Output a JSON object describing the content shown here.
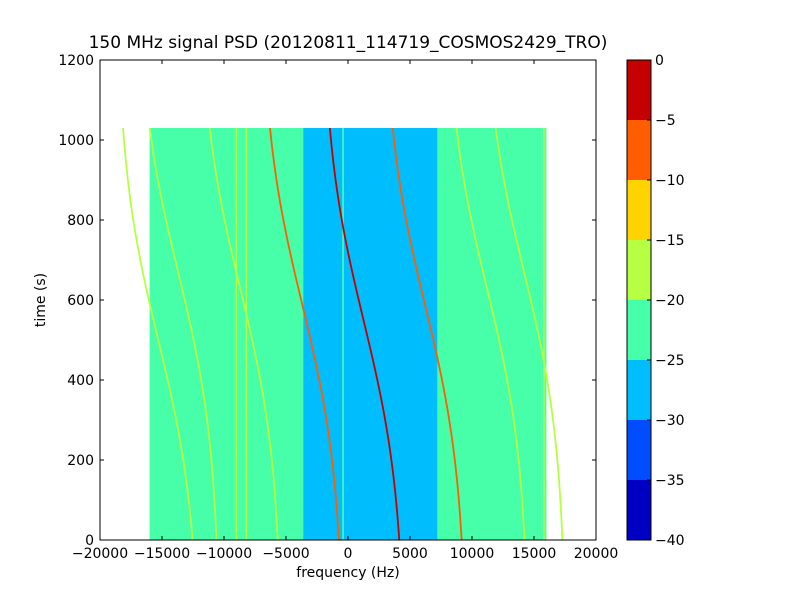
{
  "chart_data": {
    "type": "heatmap",
    "title": "150 MHz signal PSD (20120811_114719_COSMOS2429_TRO)",
    "xlabel": "frequency (Hz)",
    "ylabel": "time (s)",
    "xlim": [
      -20000,
      20000
    ],
    "ylim": [
      0,
      1200
    ],
    "xticks": [
      -20000,
      -15000,
      -10000,
      -5000,
      0,
      5000,
      10000,
      15000,
      20000
    ],
    "xtick_labels": [
      "−20000",
      "−15000",
      "−10000",
      "−5000",
      "0",
      "5000",
      "10000",
      "15000",
      "20000"
    ],
    "yticks": [
      0,
      200,
      400,
      600,
      800,
      1000,
      1200
    ],
    "ytick_labels": [
      "0",
      "200",
      "400",
      "600",
      "800",
      "1000",
      "1200"
    ],
    "data_extent": {
      "x": [
        -16000,
        16000
      ],
      "y": [
        0,
        1030
      ]
    },
    "background_level": -22.5,
    "noise_band": {
      "x": [
        -3600,
        7200
      ],
      "level": -27.5
    },
    "vertical_lines": [
      {
        "x": -9000,
        "y": [
          0,
          1030
        ],
        "level": -17.5
      },
      {
        "x": -8200,
        "y": [
          0,
          1030
        ],
        "level": -17.5
      },
      {
        "x": -400,
        "y": [
          0,
          1030
        ],
        "level": -22.5
      },
      {
        "x": 15800,
        "y": [
          0,
          1030
        ],
        "level": -17.5
      }
    ],
    "traces": [
      {
        "center_x": 1250,
        "center_y": 550,
        "spread_x": 3400,
        "time_span": 440,
        "level": -2.5,
        "y_range": [
          0,
          1030
        ]
      },
      {
        "center_x": -3700,
        "center_y": 590,
        "spread_x": 3400,
        "time_span": 440,
        "level": -7.5,
        "y_range": [
          0,
          1030
        ]
      },
      {
        "center_x": 6200,
        "center_y": 590,
        "spread_x": 3400,
        "time_span": 440,
        "level": -7.5,
        "y_range": [
          0,
          1030
        ]
      },
      {
        "center_x": -8700,
        "center_y": 630,
        "spread_x": 3400,
        "time_span": 440,
        "level": -17.5,
        "y_range": [
          0,
          1030
        ]
      },
      {
        "center_x": 11200,
        "center_y": 630,
        "spread_x": 3400,
        "time_span": 440,
        "level": -17.5,
        "y_range": [
          0,
          1030
        ]
      },
      {
        "center_x": -13700,
        "center_y": 670,
        "spread_x": 3400,
        "time_span": 440,
        "level": -17.5,
        "y_range": [
          0,
          1030
        ]
      },
      {
        "center_x": -15300,
        "center_y": 500,
        "spread_x": 3400,
        "time_span": 440,
        "level": -17.5,
        "y_range": [
          0,
          1030
        ]
      },
      {
        "center_x": 14200,
        "center_y": 670,
        "spread_x": 3400,
        "time_span": 440,
        "level": -17.5,
        "y_range": [
          0,
          1030
        ]
      }
    ],
    "colorbar": {
      "range": [
        -40,
        0
      ],
      "ticks": [
        0,
        -5,
        -10,
        -15,
        -20,
        -25,
        -30,
        -35,
        -40
      ],
      "tick_labels": [
        "0",
        "−5",
        "−10",
        "−15",
        "−20",
        "−25",
        "−30",
        "−35",
        "−40"
      ],
      "levels": [
        {
          "from": -40,
          "to": -35,
          "color": "#0000c4"
        },
        {
          "from": -35,
          "to": -30,
          "color": "#004dff"
        },
        {
          "from": -30,
          "to": -25,
          "color": "#00bdfe"
        },
        {
          "from": -25,
          "to": -20,
          "color": "#47ffa8"
        },
        {
          "from": -20,
          "to": -15,
          "color": "#b6ff43"
        },
        {
          "from": -15,
          "to": -10,
          "color": "#ffd300"
        },
        {
          "from": -10,
          "to": -5,
          "color": "#ff5d00"
        },
        {
          "from": -5,
          "to": 0,
          "color": "#c40000"
        }
      ]
    }
  }
}
